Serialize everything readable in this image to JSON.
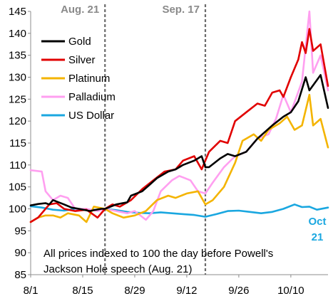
{
  "chart_data": {
    "type": "line",
    "title": "",
    "xlabel": "",
    "ylabel": "",
    "ylim": [
      85,
      145
    ],
    "y_ticks": [
      85,
      90,
      95,
      100,
      105,
      110,
      115,
      120,
      125,
      130,
      135,
      140,
      145
    ],
    "x_range": [
      "8/1",
      "10/20"
    ],
    "x_ticks": [
      {
        "label": "8/1",
        "date": "8/1"
      },
      {
        "label": "8/15",
        "date": "8/15"
      },
      {
        "label": "8/29",
        "date": "8/29"
      },
      {
        "label": "9/12",
        "date": "9/12"
      },
      {
        "label": "9/26",
        "date": "9/26"
      },
      {
        "label": "10/10",
        "date": "10/10"
      }
    ],
    "grid": false,
    "legend": "top-left",
    "vlines": [
      {
        "date": "8/21",
        "label": "Aug. 21"
      },
      {
        "date": "9/17",
        "label": "Sep. 17"
      }
    ],
    "annotations": [
      {
        "id": "note",
        "lines": [
          "All prices indexed to 100 the day before Powell's",
          "Jackson Hole speech (Aug. 21)"
        ]
      },
      {
        "id": "end",
        "lines": [
          "Oct",
          "21"
        ]
      }
    ],
    "series": [
      {
        "name": "Gold",
        "color": "#000000",
        "points": [
          [
            "8/1",
            100.8
          ],
          [
            "8/3",
            101.1
          ],
          [
            "8/5",
            101.3
          ],
          [
            "8/6",
            101.0
          ],
          [
            "8/7",
            102.0
          ],
          [
            "8/10",
            101.0
          ],
          [
            "8/12",
            100.3
          ],
          [
            "8/14",
            100.0
          ],
          [
            "8/17",
            99.5
          ],
          [
            "8/18",
            99.7
          ],
          [
            "8/20",
            100.0
          ],
          [
            "8/21",
            100.0
          ],
          [
            "8/24",
            101.0
          ],
          [
            "8/27",
            101.5
          ],
          [
            "8/28",
            103.0
          ],
          [
            "8/31",
            104.0
          ],
          [
            "9/2",
            105.5
          ],
          [
            "9/4",
            107.0
          ],
          [
            "9/7",
            108.5
          ],
          [
            "9/9",
            109.0
          ],
          [
            "9/11",
            110.0
          ],
          [
            "9/14",
            111.0
          ],
          [
            "9/16",
            112.0
          ],
          [
            "9/17",
            109.5
          ],
          [
            "9/18",
            109.5
          ],
          [
            "9/21",
            111.5
          ],
          [
            "9/23",
            112.5
          ],
          [
            "9/25",
            112.0
          ],
          [
            "9/28",
            113.0
          ],
          [
            "10/1",
            116.0
          ],
          [
            "10/5",
            119.0
          ],
          [
            "10/8",
            121.0
          ],
          [
            "10/10",
            122.0
          ],
          [
            "10/12",
            124.5
          ],
          [
            "10/14",
            130.0
          ],
          [
            "10/15",
            127.0
          ],
          [
            "10/18",
            130.5
          ],
          [
            "10/20",
            123.0
          ]
        ]
      },
      {
        "name": "Silver",
        "color": "#e10000",
        "points": [
          [
            "8/1",
            97.0
          ],
          [
            "8/3",
            98.0
          ],
          [
            "8/6",
            101.0
          ],
          [
            "8/8",
            101.3
          ],
          [
            "8/10",
            100.0
          ],
          [
            "8/13",
            99.5
          ],
          [
            "8/16",
            99.8
          ],
          [
            "8/19",
            98.0
          ],
          [
            "8/21",
            100.0
          ],
          [
            "8/23",
            101.0
          ],
          [
            "8/25",
            100.5
          ],
          [
            "8/28",
            102.0
          ],
          [
            "8/31",
            104.5
          ],
          [
            "9/3",
            106.5
          ],
          [
            "9/6",
            108.5
          ],
          [
            "9/9",
            109.0
          ],
          [
            "9/11",
            111.0
          ],
          [
            "9/14",
            112.0
          ],
          [
            "9/16",
            109.0
          ],
          [
            "9/18",
            113.0
          ],
          [
            "9/21",
            115.5
          ],
          [
            "9/23",
            115.0
          ],
          [
            "9/25",
            120.0
          ],
          [
            "9/28",
            122.0
          ],
          [
            "10/1",
            124.0
          ],
          [
            "10/3",
            123.5
          ],
          [
            "10/5",
            126.5
          ],
          [
            "10/7",
            127.0
          ],
          [
            "10/8",
            125.5
          ],
          [
            "10/10",
            130.0
          ],
          [
            "10/12",
            134.0
          ],
          [
            "10/13",
            138.0
          ],
          [
            "10/14",
            135.5
          ],
          [
            "10/15",
            141.0
          ],
          [
            "10/16",
            136.0
          ],
          [
            "10/18",
            137.5
          ],
          [
            "10/20",
            128.0
          ]
        ]
      },
      {
        "name": "Platinum",
        "color": "#f4b400",
        "points": [
          [
            "8/1",
            97.0
          ],
          [
            "8/3",
            98.0
          ],
          [
            "8/5",
            98.5
          ],
          [
            "8/7",
            98.5
          ],
          [
            "8/9",
            98.0
          ],
          [
            "8/11",
            99.0
          ],
          [
            "8/14",
            98.5
          ],
          [
            "8/16",
            97.0
          ],
          [
            "8/18",
            100.5
          ],
          [
            "8/21",
            100.0
          ],
          [
            "8/23",
            99.0
          ],
          [
            "8/26",
            98.0
          ],
          [
            "8/29",
            98.5
          ],
          [
            "9/1",
            99.5
          ],
          [
            "9/4",
            102.0
          ],
          [
            "9/7",
            103.0
          ],
          [
            "9/9",
            102.5
          ],
          [
            "9/12",
            103.5
          ],
          [
            "9/15",
            104.0
          ],
          [
            "9/17",
            101.0
          ],
          [
            "9/19",
            102.0
          ],
          [
            "9/22",
            105.0
          ],
          [
            "9/25",
            110.5
          ],
          [
            "9/27",
            115.5
          ],
          [
            "9/30",
            117.0
          ],
          [
            "10/2",
            115.5
          ],
          [
            "10/4",
            118.0
          ],
          [
            "10/7",
            119.5
          ],
          [
            "10/9",
            121.0
          ],
          [
            "10/11",
            118.0
          ],
          [
            "10/13",
            119.0
          ],
          [
            "10/15",
            126.0
          ],
          [
            "10/16",
            119.0
          ],
          [
            "10/18",
            120.5
          ],
          [
            "10/20",
            114.0
          ]
        ]
      },
      {
        "name": "Palladium",
        "color": "#ff9ff0",
        "points": [
          [
            "8/1",
            108.8
          ],
          [
            "8/4",
            108.5
          ],
          [
            "8/5",
            104.0
          ],
          [
            "8/7",
            102.0
          ],
          [
            "8/9",
            103.0
          ],
          [
            "8/11",
            102.5
          ],
          [
            "8/13",
            100.0
          ],
          [
            "8/16",
            100.0
          ],
          [
            "8/19",
            99.5
          ],
          [
            "8/21",
            100.0
          ],
          [
            "8/24",
            99.5
          ],
          [
            "8/27",
            99.0
          ],
          [
            "8/29",
            99.5
          ],
          [
            "9/1",
            97.5
          ],
          [
            "9/3",
            99.5
          ],
          [
            "9/5",
            104.0
          ],
          [
            "9/8",
            106.5
          ],
          [
            "9/10",
            107.5
          ],
          [
            "9/13",
            106.5
          ],
          [
            "9/15",
            104.0
          ],
          [
            "9/17",
            103.5
          ],
          [
            "9/19",
            106.0
          ],
          [
            "9/22",
            109.5
          ],
          [
            "9/25",
            112.0
          ],
          [
            "9/28",
            113.0
          ],
          [
            "10/1",
            116.0
          ],
          [
            "10/4",
            117.0
          ],
          [
            "10/6",
            120.5
          ],
          [
            "10/8",
            126.0
          ],
          [
            "10/10",
            122.0
          ],
          [
            "10/13",
            129.0
          ],
          [
            "10/15",
            145.0
          ],
          [
            "10/16",
            131.0
          ],
          [
            "10/18",
            135.0
          ],
          [
            "10/20",
            127.0
          ]
        ]
      },
      {
        "name": "US Dollar",
        "color": "#1aa7e0",
        "points": [
          [
            "8/1",
            100.6
          ],
          [
            "8/4",
            100.3
          ],
          [
            "8/7",
            99.8
          ],
          [
            "8/10",
            99.6
          ],
          [
            "8/13",
            100.0
          ],
          [
            "8/16",
            99.7
          ],
          [
            "8/19",
            99.8
          ],
          [
            "8/21",
            100.0
          ],
          [
            "8/24",
            99.7
          ],
          [
            "8/27",
            99.3
          ],
          [
            "8/30",
            99.1
          ],
          [
            "9/2",
            99.0
          ],
          [
            "9/5",
            99.2
          ],
          [
            "9/8",
            99.0
          ],
          [
            "9/11",
            98.8
          ],
          [
            "9/14",
            98.6
          ],
          [
            "9/17",
            98.2
          ],
          [
            "9/20",
            98.8
          ],
          [
            "9/23",
            99.5
          ],
          [
            "9/26",
            99.6
          ],
          [
            "9/29",
            99.3
          ],
          [
            "10/2",
            99.0
          ],
          [
            "10/5",
            99.3
          ],
          [
            "10/8",
            100.0
          ],
          [
            "10/11",
            101.0
          ],
          [
            "10/13",
            100.4
          ],
          [
            "10/15",
            100.5
          ],
          [
            "10/17",
            99.8
          ],
          [
            "10/20",
            100.3
          ]
        ]
      }
    ]
  }
}
